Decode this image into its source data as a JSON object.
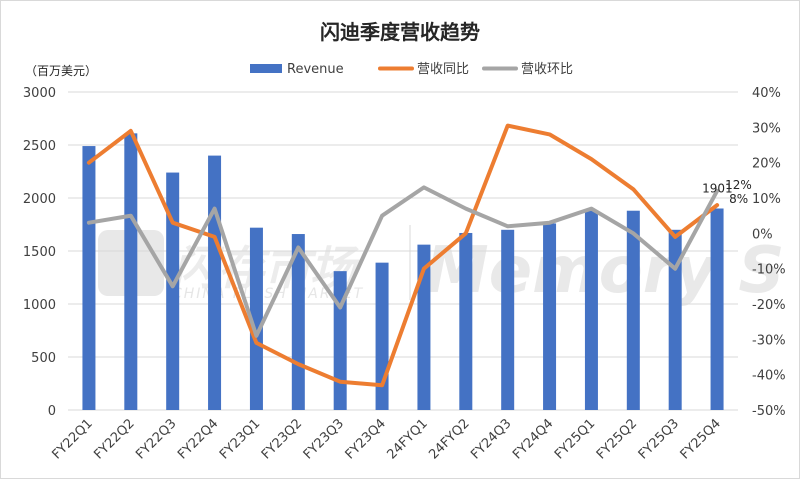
{
  "chart_data": {
    "type": "bar+line",
    "title": "闪迪季度营收趋势",
    "ylabel_left": "（百万美元）",
    "categories": [
      "FY22Q1",
      "FY22Q2",
      "FY22Q3",
      "FY22Q4",
      "FY23Q1",
      "FY23Q2",
      "FY23Q3",
      "FY23Q4",
      "24FYQ1",
      "24FYQ2",
      "FY24Q3",
      "FY24Q4",
      "FY25Q1",
      "FY25Q2",
      "FY25Q3",
      "FY25Q4"
    ],
    "left_axis": {
      "min": 0,
      "max": 3000,
      "step": 500,
      "ticks": [
        "0",
        "500",
        "1000",
        "1500",
        "2000",
        "2500",
        "3000"
      ]
    },
    "right_axis": {
      "min": -50,
      "max": 40,
      "step": 10,
      "ticks": [
        "-50%",
        "-40%",
        "-30%",
        "-20%",
        "-10%",
        "0%",
        "10%",
        "20%",
        "30%",
        "40%"
      ]
    },
    "series": [
      {
        "name": "Revenue",
        "type": "bar",
        "axis": "left",
        "color": "#4472C4",
        "values": [
          2490,
          2610,
          2240,
          2400,
          1720,
          1660,
          1310,
          1390,
          1560,
          1670,
          1700,
          1760,
          1880,
          1880,
          1700,
          1901
        ]
      },
      {
        "name": "营收同比",
        "type": "line",
        "axis": "right",
        "color": "#ED7D31",
        "values": [
          20,
          29,
          3,
          -1,
          -31,
          -37,
          -42,
          -43,
          -10,
          0,
          30.5,
          28,
          21,
          12.5,
          -1,
          8
        ]
      },
      {
        "name": "营收环比",
        "type": "line",
        "axis": "right",
        "color": "#A5A5A5",
        "values": [
          3,
          5,
          -15,
          7,
          -29,
          -4,
          -21,
          5,
          13,
          7,
          2,
          3,
          7,
          0,
          -10,
          12
        ]
      }
    ],
    "data_labels": [
      {
        "series": "Revenue",
        "index": 15,
        "text": "1901"
      },
      {
        "series": "营收环比",
        "index": 15,
        "text": "12%"
      },
      {
        "series": "营收同比",
        "index": 15,
        "text": "8%"
      }
    ],
    "watermark": [
      "闪存市场",
      "CHINA FLASH MARKET",
      "Memory S"
    ],
    "grid": true,
    "legend_position": "top"
  }
}
